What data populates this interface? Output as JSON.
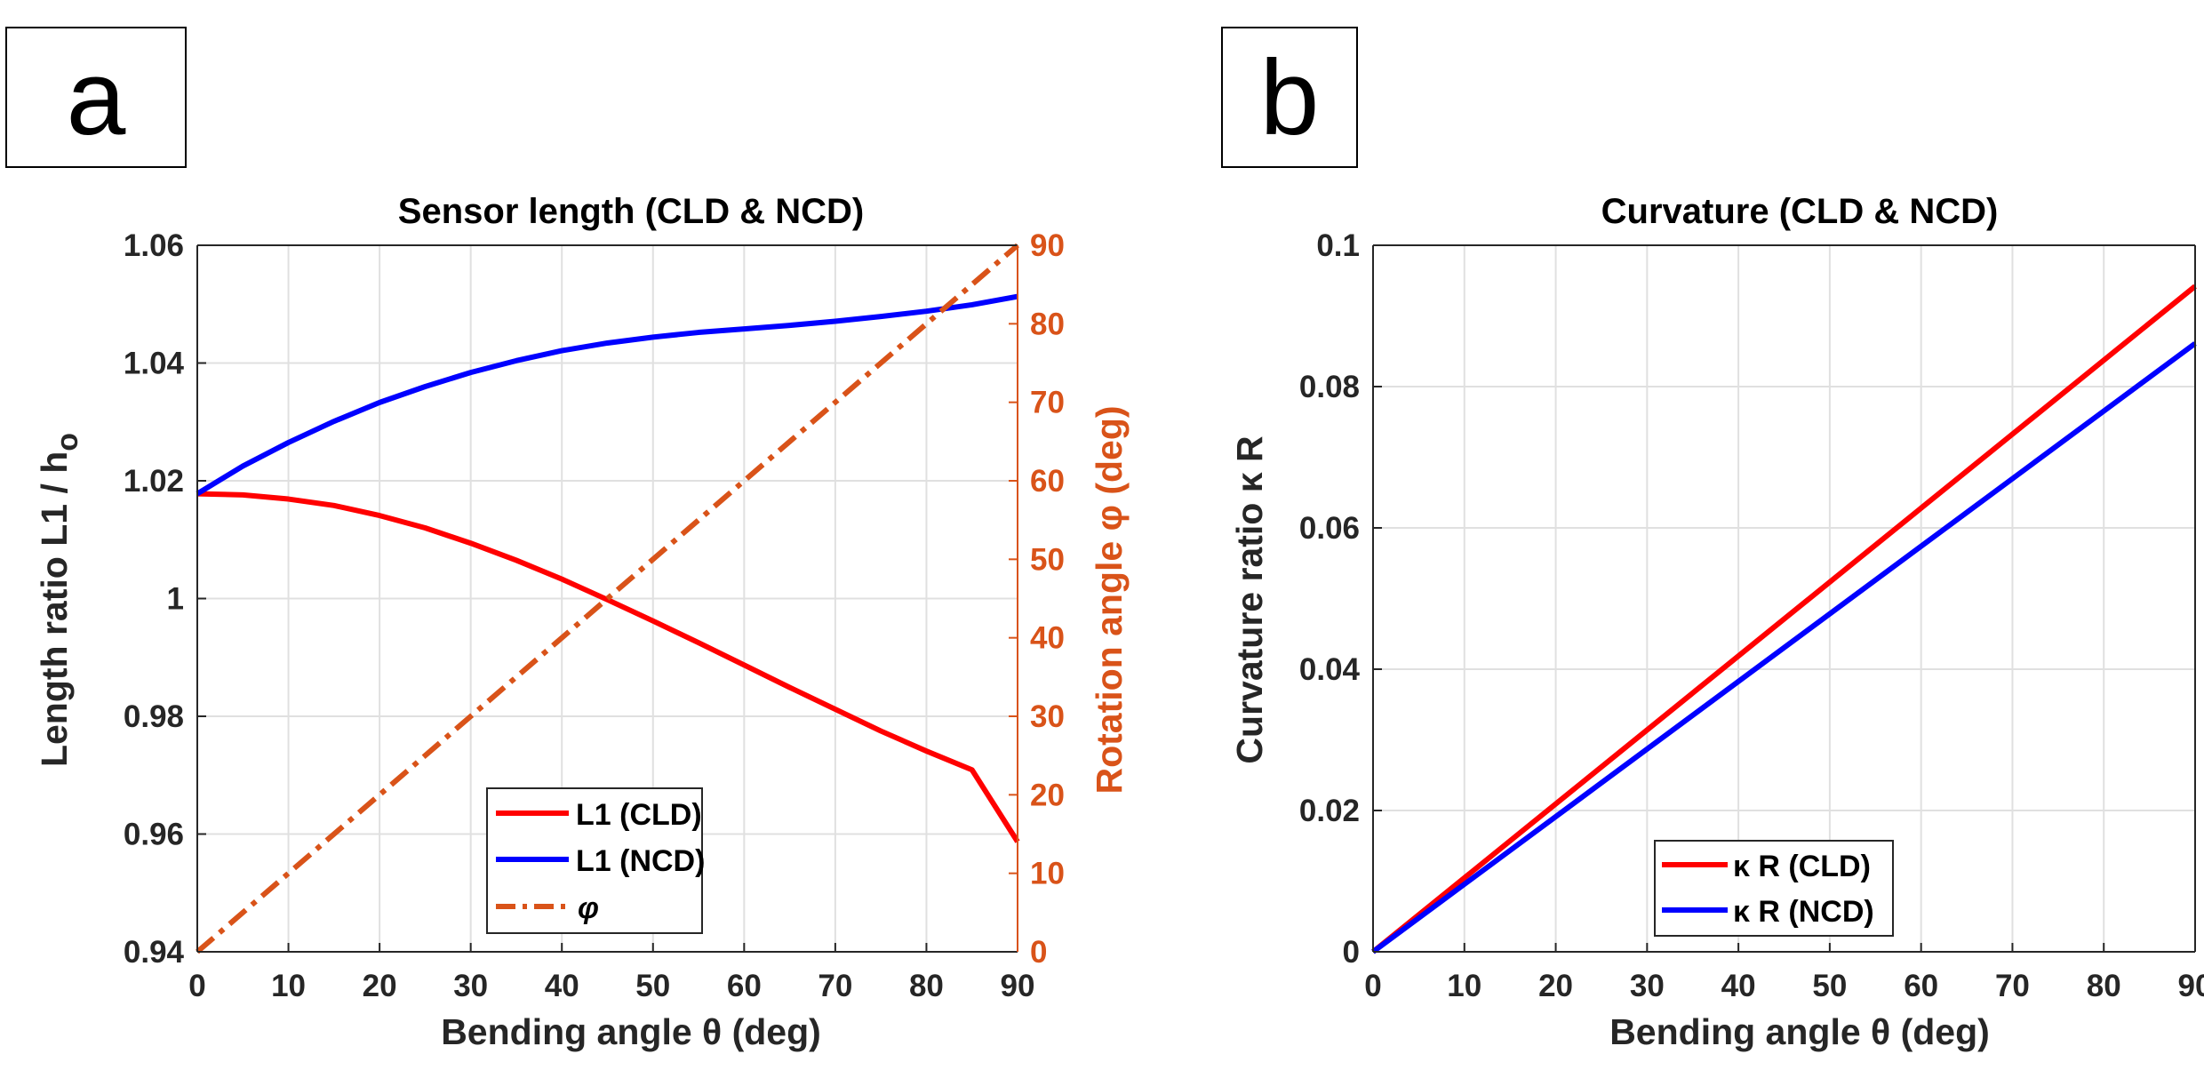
{
  "panel_labels": {
    "a": "a",
    "b": "b"
  },
  "colors": {
    "red": "#ff0000",
    "blue": "#0000ff",
    "orange": "#d95319",
    "axis": "#262626",
    "grid": "#e0e0e0"
  },
  "chart_data": [
    {
      "type": "line",
      "title": "Sensor length (CLD & NCD)",
      "xlabel": "Bending angle  θ (deg)",
      "ylabel_left": "Length ratio  L1 / h",
      "ylabel_left_subscript": "o",
      "ylabel_right": "Rotation angle φ (deg)",
      "xlim": [
        0,
        90
      ],
      "ylim_left": [
        0.94,
        1.06
      ],
      "ylim_right": [
        0,
        90
      ],
      "x_ticks": [
        "0",
        "10",
        "20",
        "30",
        "40",
        "50",
        "60",
        "70",
        "80",
        "90"
      ],
      "y_ticks_left": [
        "0.94",
        "0.96",
        "0.98",
        "1",
        "1.02",
        "1.04",
        "1.06"
      ],
      "y_ticks_right": [
        "0",
        "10",
        "20",
        "30",
        "40",
        "50",
        "60",
        "70",
        "80",
        "90"
      ],
      "grid": true,
      "legend_position": "bottom-center",
      "legend": [
        "L1 (CLD)",
        "L1 (NCD)",
        "φ"
      ],
      "series": [
        {
          "name": "L1 (CLD)",
          "axis": "left",
          "style": "solid",
          "color": "#ff0000",
          "x": [
            0,
            5,
            10,
            15,
            20,
            25,
            30,
            35,
            40,
            45,
            50,
            55,
            60,
            65,
            70,
            75,
            80,
            85,
            90
          ],
          "values": [
            1.0178,
            1.0176,
            1.0169,
            1.0158,
            1.0141,
            1.012,
            1.0094,
            1.0065,
            1.0033,
            0.9998,
            0.9962,
            0.9925,
            0.9887,
            0.9849,
            0.9812,
            0.9775,
            0.9741,
            0.9709,
            0.9587
          ]
        },
        {
          "name": "L1 (NCD)",
          "axis": "left",
          "style": "solid",
          "color": "#0000ff",
          "x": [
            0,
            5,
            10,
            15,
            20,
            25,
            30,
            35,
            40,
            45,
            50,
            55,
            60,
            65,
            70,
            75,
            80,
            85,
            90
          ],
          "values": [
            1.0178,
            1.0225,
            1.0265,
            1.0301,
            1.0333,
            1.036,
            1.0384,
            1.0404,
            1.0421,
            1.0434,
            1.0444,
            1.0452,
            1.0458,
            1.0464,
            1.0471,
            1.0479,
            1.0488,
            1.0499,
            1.0513
          ]
        },
        {
          "name": "φ",
          "axis": "right",
          "style": "dashdot",
          "color": "#d95319",
          "x": [
            0,
            90
          ],
          "values": [
            0,
            90
          ]
        }
      ]
    },
    {
      "type": "line",
      "title": "Curvature (CLD & NCD)",
      "xlabel": "Bending angle  θ (deg)",
      "ylabel": "Curvature ratio  κ R",
      "xlim": [
        0,
        90
      ],
      "ylim": [
        0,
        0.1
      ],
      "x_ticks": [
        "0",
        "10",
        "20",
        "30",
        "40",
        "50",
        "60",
        "70",
        "80",
        "90"
      ],
      "y_ticks": [
        "0",
        "0.02",
        "0.04",
        "0.06",
        "0.08",
        "0.1"
      ],
      "grid": true,
      "legend_position": "bottom-center",
      "legend": [
        "κ R (CLD)",
        "κ R (NCD)"
      ],
      "series": [
        {
          "name": "κ R (CLD)",
          "style": "solid",
          "color": "#ff0000",
          "x": [
            0,
            90
          ],
          "values": [
            0,
            0.0942
          ]
        },
        {
          "name": "κ R (NCD)",
          "style": "solid",
          "color": "#0000ff",
          "x": [
            0,
            90
          ],
          "values": [
            0,
            0.0861
          ]
        }
      ]
    }
  ]
}
